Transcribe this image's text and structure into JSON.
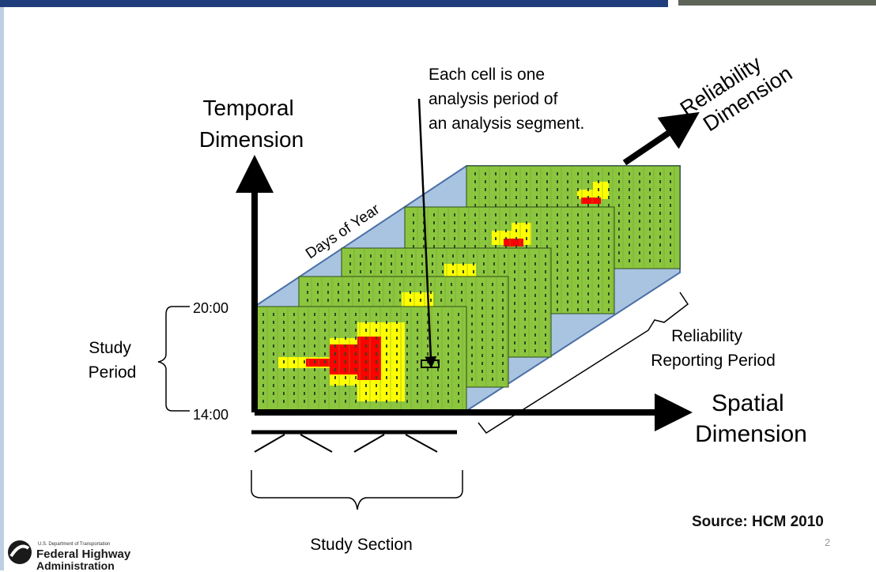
{
  "labels": {
    "temporal_line1": "Temporal",
    "temporal_line2": "Dimension",
    "reliability_line1": "Reliability",
    "reliability_line2": "Dimension",
    "spatial_line1": "Spatial",
    "spatial_line2": "Dimension",
    "callout_line1": "Each cell is one",
    "callout_line2": "analysis period of",
    "callout_line3": "an analysis segment.",
    "days_of_year": "Days of Year",
    "time_top": "20:00",
    "time_bottom": "14:00",
    "study_period_line1": "Study",
    "study_period_line2": "Period",
    "reporting_line1": "Reliability",
    "reporting_line2": "Reporting Period",
    "study_section": "Study  Section"
  },
  "footer": {
    "agency_small": "U.S. Department of Transportation",
    "agency_line1": "Federal Highway",
    "agency_line2": "Administration",
    "source": "Source: HCM 2010",
    "page_number": "2"
  },
  "colors": {
    "green": "#8cc63f",
    "yellow": "#ffff00",
    "red": "#ff0000",
    "slab_blue": "#a8c4e0",
    "slab_edge": "#4a6fa5",
    "header_bar": "#1e3d7a"
  }
}
